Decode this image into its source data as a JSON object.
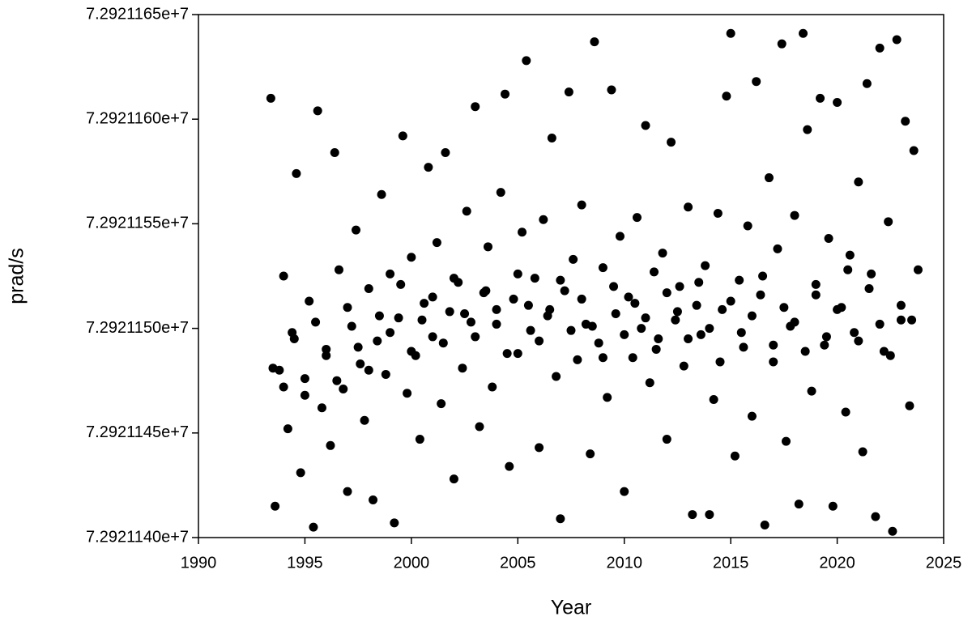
{
  "chart_data": {
    "type": "scatter",
    "x_label": "Year",
    "y_label": "prad/s",
    "color": "#000000",
    "xlim": [
      1990,
      2025
    ],
    "xticks": [
      1990,
      1995,
      2000,
      2005,
      2010,
      2015,
      2020,
      2025
    ],
    "ylim": [
      72921140,
      72921165
    ],
    "yticks": [
      {
        "value": 72921140,
        "label": "7.2921140e+7"
      },
      {
        "value": 72921145,
        "label": "7.2921145e+7"
      },
      {
        "value": 72921150,
        "label": "7.2921150e+7"
      },
      {
        "value": 72921155,
        "label": "7.2921155e+7"
      },
      {
        "value": 72921160,
        "label": "7.2921160e+7"
      },
      {
        "value": 72921165,
        "label": "7.2921165e+7"
      }
    ],
    "x": [
      1993.4,
      1993.6,
      1993.8,
      1994.0,
      1994.2,
      1994.4,
      1994.6,
      1994.8,
      1995.0,
      1995.2,
      1995.4,
      1995.6,
      1995.8,
      1996.0,
      1996.2,
      1996.4,
      1996.6,
      1996.8,
      1997.0,
      1997.2,
      1997.4,
      1997.6,
      1997.8,
      1998.0,
      1998.2,
      1998.4,
      1998.6,
      1998.8,
      1999.0,
      1999.2,
      1999.4,
      1999.6,
      1999.8,
      2000.0,
      2000.2,
      2000.4,
      2000.6,
      2000.8,
      2001.0,
      2001.2,
      2001.4,
      2001.6,
      2001.8,
      2002.0,
      2002.2,
      2002.4,
      2002.6,
      2002.8,
      2003.0,
      2003.2,
      2003.4,
      2003.6,
      2003.8,
      2004.0,
      2004.2,
      2004.4,
      2004.6,
      2004.8,
      2005.0,
      2005.2,
      2005.4,
      2005.6,
      2005.8,
      2006.0,
      2006.2,
      2006.4,
      2006.6,
      2006.8,
      2007.0,
      2007.2,
      2007.4,
      2007.6,
      2007.8,
      2008.0,
      2008.2,
      2008.4,
      2008.6,
      2008.8,
      2009.0,
      2009.2,
      2009.4,
      2009.6,
      2009.8,
      2010.0,
      2010.2,
      2010.4,
      2010.6,
      2010.8,
      2011.0,
      2011.2,
      2011.4,
      2011.6,
      2011.8,
      2012.0,
      2012.2,
      2012.4,
      2012.6,
      2012.8,
      2013.0,
      2013.2,
      2013.4,
      2013.6,
      2013.8,
      2014.0,
      2014.2,
      2014.4,
      2014.6,
      2014.8,
      2015.0,
      2015.2,
      2015.4,
      2015.6,
      2015.8,
      2016.0,
      2016.2,
      2016.4,
      2016.6,
      2016.8,
      2017.0,
      2017.2,
      2017.4,
      2017.6,
      2017.8,
      2018.0,
      2018.2,
      2018.4,
      2018.6,
      2018.8,
      2019.0,
      2019.2,
      2019.4,
      2019.6,
      2019.8,
      2020.0,
      2020.2,
      2020.4,
      2020.6,
      2020.8,
      2021.0,
      2021.2,
      2021.4,
      2021.6,
      2021.8,
      2022.0,
      2022.2,
      2022.4,
      2022.6,
      2022.8,
      2023.0,
      2023.2,
      2023.4,
      2023.6,
      2023.8,
      1993.5,
      1994.0,
      1994.5,
      1995.0,
      1995.5,
      1996.0,
      1996.5,
      1997.0,
      1997.5,
      1998.0,
      1998.5,
      1999.0,
      1999.5,
      2000.0,
      2000.5,
      2001.0,
      2001.5,
      2002.0,
      2002.5,
      2003.0,
      2003.5,
      2004.0,
      2004.5,
      2005.0,
      2005.5,
      2006.0,
      2006.5,
      2007.0,
      2007.5,
      2008.0,
      2008.5,
      2009.0,
      2009.5,
      2010.0,
      2010.5,
      2011.0,
      2011.5,
      2012.0,
      2012.5,
      2013.0,
      2013.5,
      2014.0,
      2014.5,
      2015.0,
      2015.5,
      2016.0,
      2016.5,
      2017.0,
      2017.5,
      2018.0,
      2018.5,
      2019.0,
      2019.5,
      2020.0,
      2020.5,
      2021.0,
      2021.5,
      2022.0,
      2022.5,
      2023.0,
      2023.5
    ],
    "y": [
      72921161.0,
      72921141.5,
      72921148.0,
      72921152.5,
      72921145.2,
      72921149.8,
      72921157.4,
      72921143.1,
      72921147.6,
      72921151.3,
      72921140.5,
      72921160.4,
      72921146.2,
      72921149.0,
      72921144.4,
      72921158.4,
      72921152.8,
      72921147.1,
      72921142.2,
      72921150.1,
      72921154.7,
      72921148.3,
      72921145.6,
      72921151.9,
      72921141.8,
      72921149.4,
      72921156.4,
      72921147.8,
      72921152.6,
      72921140.7,
      72921150.5,
      72921159.2,
      72921146.9,
      72921153.4,
      72921148.7,
      72921144.7,
      72921151.2,
      72921157.7,
      72921149.6,
      72921154.1,
      72921146.4,
      72921158.4,
      72921150.8,
      72921142.8,
      72921152.2,
      72921148.1,
      72921155.6,
      72921150.3,
      72921160.6,
      72921145.3,
      72921151.7,
      72921153.9,
      72921147.2,
      72921150.9,
      72921156.5,
      72921161.2,
      72921143.4,
      72921151.4,
      72921148.8,
      72921154.6,
      72921162.8,
      72921149.9,
      72921152.4,
      72921144.3,
      72921155.2,
      72921150.6,
      72921159.1,
      72921147.7,
      72921140.9,
      72921151.8,
      72921161.3,
      72921153.3,
      72921148.5,
      72921155.9,
      72921150.2,
      72921144.0,
      72921163.7,
      72921149.3,
      72921152.9,
      72921146.7,
      72921161.4,
      72921150.7,
      72921154.4,
      72921142.2,
      72921151.5,
      72921148.6,
      72921155.3,
      72921150.0,
      72921159.7,
      72921147.4,
      72921152.7,
      72921149.5,
      72921153.6,
      72921144.7,
      72921158.9,
      72921150.4,
      72921152.0,
      72921148.2,
      72921155.8,
      72921141.1,
      72921151.1,
      72921149.7,
      72921153.0,
      72921141.1,
      72921146.6,
      72921155.5,
      72921150.9,
      72921161.1,
      72921164.1,
      72921143.9,
      72921152.3,
      72921149.1,
      72921154.9,
      72921145.8,
      72921161.8,
      72921151.6,
      72921140.6,
      72921157.2,
      72921148.4,
      72921153.8,
      72921163.6,
      72921144.6,
      72921150.1,
      72921155.4,
      72921141.6,
      72921164.1,
      72921159.5,
      72921147.0,
      72921152.1,
      72921161.0,
      72921149.2,
      72921154.3,
      72921141.5,
      72921160.8,
      72921151.0,
      72921146.0,
      72921153.5,
      72921149.8,
      72921157.0,
      72921144.1,
      72921161.7,
      72921152.6,
      72921141.0,
      72921163.4,
      72921148.9,
      72921155.1,
      72921140.3,
      72921163.8,
      72921150.4,
      72921159.9,
      72921146.3,
      72921158.5,
      72921152.8,
      72921148.1,
      72921147.2,
      72921149.5,
      72921146.8,
      72921150.3,
      72921148.7,
      72921147.5,
      72921151.0,
      72921149.1,
      72921148.0,
      72921150.6,
      72921149.8,
      72921152.1,
      72921148.9,
      72921150.4,
      72921151.5,
      72921149.3,
      72921152.4,
      72921150.7,
      72921149.6,
      72921151.8,
      72921150.2,
      72921148.8,
      72921152.6,
      72921151.1,
      72921149.4,
      72921150.9,
      72921152.3,
      72921149.9,
      72921151.4,
      72921150.1,
      72921148.6,
      72921152.0,
      72921149.7,
      72921151.2,
      72921150.5,
      72921149.0,
      72921151.7,
      72921150.8,
      72921149.5,
      72921152.2,
      72921150.0,
      72921148.4,
      72921151.3,
      72921149.8,
      72921150.6,
      72921152.5,
      72921149.2,
      72921151.0,
      72921150.3,
      72921148.9,
      72921151.6,
      72921149.6,
      72921150.9,
      72921152.8,
      72921149.4,
      72921151.9,
      72921150.2,
      72921148.7,
      72921151.1,
      72921150.4
    ]
  }
}
